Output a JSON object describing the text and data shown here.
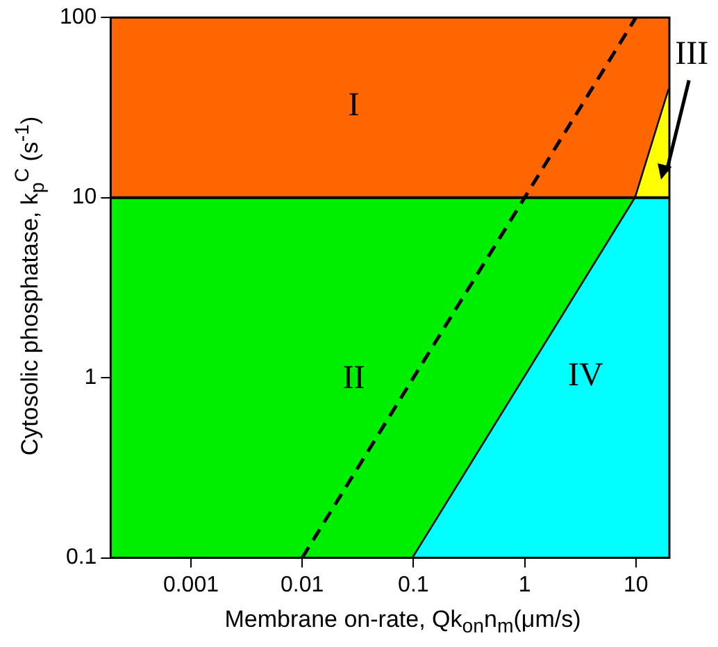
{
  "chart_data": {
    "type": "area",
    "xlabel": "Membrane on-rate, Qk$_{on}$n$_{m}$(μm/s)",
    "ylabel": "Cytosolic phosphatase, k$_{p}$$^{C}$ (s$^{-1}$)",
    "log": "xy",
    "xlim": [
      0.00019,
      20
    ],
    "ylim": [
      0.1,
      100
    ],
    "xticks": [
      0.001,
      0.01,
      0.1,
      1,
      10
    ],
    "yticks": [
      0.1,
      1,
      10,
      100
    ],
    "bands": [
      {
        "axis": "y",
        "from": 10,
        "to": 100,
        "color": "#ff6600"
      },
      {
        "axis": "y",
        "from": 0.1,
        "to": 10,
        "color": "#00ee00"
      }
    ],
    "ref_lines": [
      {
        "axis": "y",
        "value": 10,
        "color": "#000000"
      }
    ],
    "series": [
      {
        "color": "#00ffff",
        "x": [
          0.1,
          10,
          20
        ],
        "values": [
          0.1,
          10,
          10
        ]
      },
      {
        "color": "#ffff00",
        "x": [
          10,
          20
        ],
        "values": [
          10,
          40
        ]
      },
      {
        "type": "line",
        "color": "#000000",
        "line_style": "solid",
        "x": [
          0.1,
          10,
          20
        ],
        "values": [
          0.1,
          10,
          40
        ]
      },
      {
        "type": "line",
        "color": "#000000",
        "line_style": "dashed",
        "x": [
          0.01,
          10
        ],
        "values": [
          0.1,
          100
        ]
      }
    ],
    "annotations": [
      "I",
      "II",
      "IV",
      "III"
    ]
  }
}
